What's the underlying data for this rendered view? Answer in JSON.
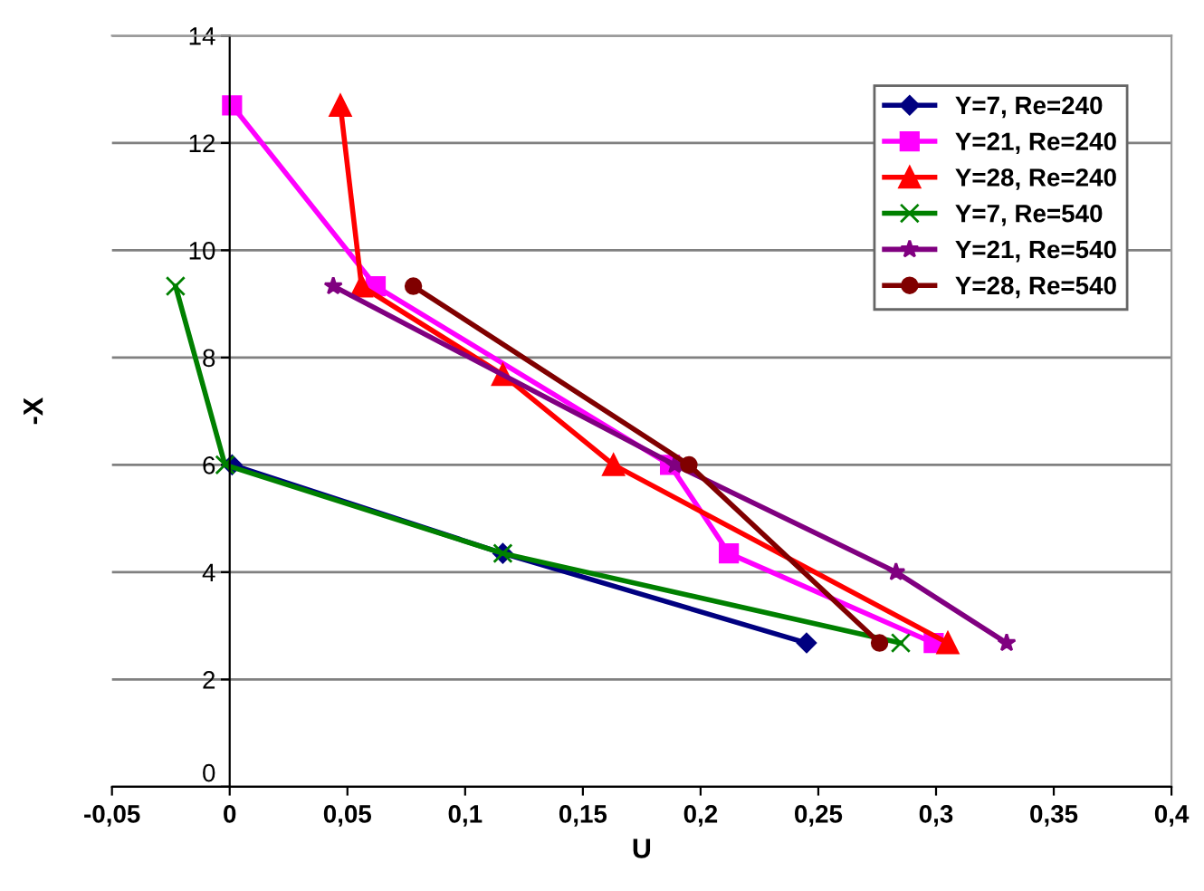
{
  "chart_data": {
    "type": "line",
    "xlabel": "U",
    "ylabel": "-X",
    "xlim": [
      -0.05,
      0.4
    ],
    "xticks": [
      {
        "value": -0.05,
        "label": "-0,05"
      },
      0,
      {
        "value": 0.05,
        "label": "0,05"
      },
      {
        "value": 0.1,
        "label": "0,1"
      },
      {
        "value": 0.15,
        "label": "0,15"
      },
      {
        "value": 0.2,
        "label": "0,2"
      },
      {
        "value": 0.25,
        "label": "0,25"
      },
      {
        "value": 0.3,
        "label": "0,3"
      },
      {
        "value": 0.35,
        "label": "0,35"
      },
      {
        "value": 0.4,
        "label": "0,4"
      }
    ],
    "ylim": [
      0,
      14
    ],
    "yticks": [
      0,
      2,
      4,
      6,
      8,
      10,
      12,
      14
    ],
    "grid": "y",
    "legend": "top right",
    "series": [
      {
        "name": "Y=7, Re=240",
        "color": "#000080",
        "marker": "diamond",
        "x": [
          0.001,
          0.116,
          0.245
        ],
        "values": [
          6.0,
          4.35,
          2.68
        ]
      },
      {
        "name": "Y=21, Re=240",
        "color": "#ff00ff",
        "marker": "square",
        "x": [
          0.001,
          0.062,
          0.187,
          0.212,
          0.299
        ],
        "values": [
          12.7,
          9.33,
          6.0,
          4.35,
          2.68
        ]
      },
      {
        "name": "Y=28, Re=240",
        "color": "#ff0000",
        "marker": "triangle",
        "x": [
          0.047,
          0.056,
          0.116,
          0.163,
          0.305
        ],
        "values": [
          12.7,
          9.33,
          7.68,
          6.0,
          2.68
        ]
      },
      {
        "name": "Y=7, Re=540",
        "color": "#008000",
        "marker": "cross",
        "x": [
          -0.023,
          -0.002,
          0.116,
          0.285
        ],
        "values": [
          9.33,
          6.0,
          4.35,
          2.68
        ]
      },
      {
        "name": "Y=21, Re=540",
        "color": "#800080",
        "marker": "star",
        "x": [
          0.044,
          0.189,
          0.283,
          0.33
        ],
        "values": [
          9.33,
          6.0,
          4.0,
          2.68
        ]
      },
      {
        "name": "Y=28, Re=540",
        "color": "#800000",
        "marker": "circle",
        "x": [
          0.078,
          0.195,
          0.276
        ],
        "values": [
          9.33,
          6.0,
          2.68
        ]
      }
    ]
  }
}
